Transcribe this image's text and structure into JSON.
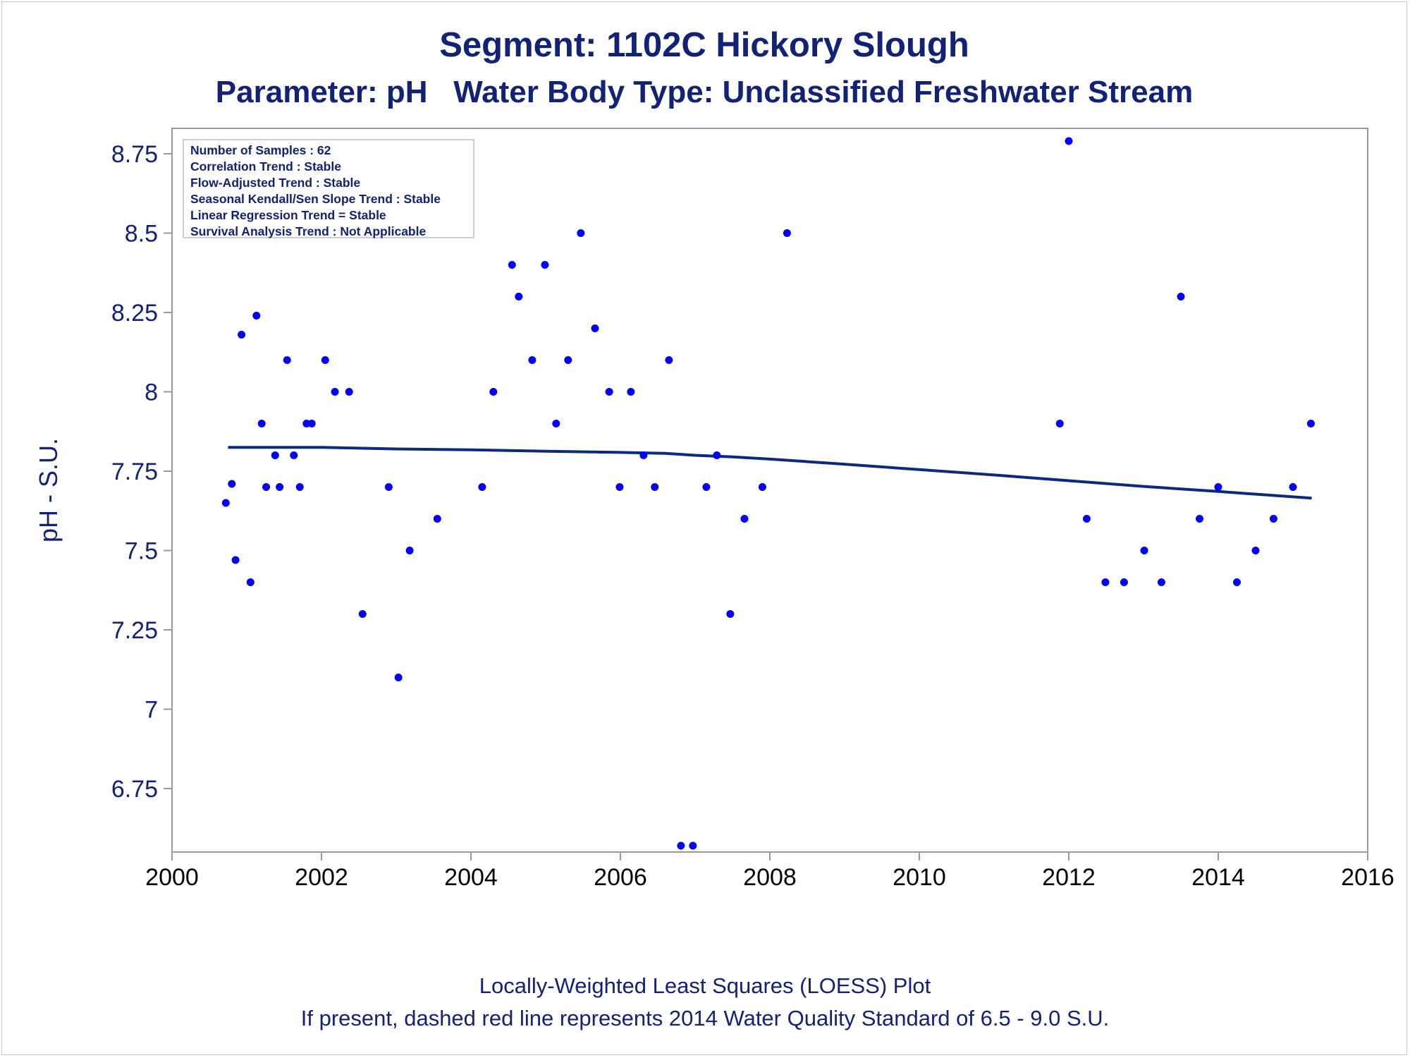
{
  "title": "Segment: 1102C  Hickory Slough",
  "subtitle": "Parameter: pH   Water Body Type: Unclassified Freshwater Stream",
  "footnote1": "Locally-Weighted Least Squares (LOESS) Plot",
  "footnote2": "If present, dashed red line represents 2014 Water Quality Standard of 6.5 - 9.0 S.U.",
  "stats": [
    "Number of Samples : 62",
    "Correlation Trend : Stable",
    "Flow-Adjusted Trend : Stable",
    "Seasonal Kendall/Sen Slope Trend : Stable",
    "Linear Regression Trend = Stable",
    "Survival Analysis Trend : Not Applicable"
  ],
  "colors": {
    "text": "#112277",
    "points": "#0000ff",
    "loess": "#0a2a80",
    "frame": "#999999"
  },
  "chart_data": {
    "type": "scatter",
    "title": "Segment: 1102C  Hickory Slough",
    "subtitle": "Parameter: pH   Water Body Type: Unclassified Freshwater Stream",
    "xlabel": "",
    "ylabel": "pH - S.U.",
    "xlim": [
      2000,
      2016
    ],
    "ylim": [
      6.55,
      8.83
    ],
    "xticks": [
      2000,
      2002,
      2004,
      2006,
      2008,
      2010,
      2012,
      2014,
      2016
    ],
    "yticks": [
      6.75,
      7,
      7.25,
      7.5,
      7.75,
      8,
      8.25,
      8.5,
      8.75
    ],
    "ytick_labels": [
      "6.75",
      "7",
      "7.25",
      "7.5",
      "7.75",
      "8",
      "8.25",
      "8.5",
      "8.75"
    ],
    "grid": false,
    "points": [
      {
        "x": 2000.72,
        "y": 7.65
      },
      {
        "x": 2000.8,
        "y": 7.71
      },
      {
        "x": 2000.85,
        "y": 7.47
      },
      {
        "x": 2000.93,
        "y": 8.18
      },
      {
        "x": 2001.05,
        "y": 7.4
      },
      {
        "x": 2001.13,
        "y": 8.24
      },
      {
        "x": 2001.2,
        "y": 7.9
      },
      {
        "x": 2001.26,
        "y": 7.7
      },
      {
        "x": 2001.38,
        "y": 7.8
      },
      {
        "x": 2001.44,
        "y": 7.7
      },
      {
        "x": 2001.54,
        "y": 8.1
      },
      {
        "x": 2001.63,
        "y": 7.8
      },
      {
        "x": 2001.71,
        "y": 7.7
      },
      {
        "x": 2001.8,
        "y": 7.9
      },
      {
        "x": 2001.87,
        "y": 7.9
      },
      {
        "x": 2002.05,
        "y": 8.1
      },
      {
        "x": 2002.18,
        "y": 8.0
      },
      {
        "x": 2002.37,
        "y": 8.0
      },
      {
        "x": 2002.55,
        "y": 7.3
      },
      {
        "x": 2002.9,
        "y": 7.7
      },
      {
        "x": 2003.03,
        "y": 7.1
      },
      {
        "x": 2003.18,
        "y": 7.5
      },
      {
        "x": 2003.55,
        "y": 7.6
      },
      {
        "x": 2004.15,
        "y": 7.7
      },
      {
        "x": 2004.3,
        "y": 8.0
      },
      {
        "x": 2004.55,
        "y": 8.4
      },
      {
        "x": 2004.64,
        "y": 8.3
      },
      {
        "x": 2004.82,
        "y": 8.1
      },
      {
        "x": 2004.99,
        "y": 8.4
      },
      {
        "x": 2005.14,
        "y": 7.9
      },
      {
        "x": 2005.3,
        "y": 8.1
      },
      {
        "x": 2005.47,
        "y": 8.5
      },
      {
        "x": 2005.66,
        "y": 8.2
      },
      {
        "x": 2005.85,
        "y": 8.0
      },
      {
        "x": 2005.99,
        "y": 7.7
      },
      {
        "x": 2006.14,
        "y": 8.0
      },
      {
        "x": 2006.31,
        "y": 7.8
      },
      {
        "x": 2006.46,
        "y": 7.7
      },
      {
        "x": 2006.65,
        "y": 8.1
      },
      {
        "x": 2006.81,
        "y": 6.57
      },
      {
        "x": 2006.97,
        "y": 6.57
      },
      {
        "x": 2007.15,
        "y": 7.7
      },
      {
        "x": 2007.29,
        "y": 7.8
      },
      {
        "x": 2007.47,
        "y": 7.3
      },
      {
        "x": 2007.66,
        "y": 7.6
      },
      {
        "x": 2007.9,
        "y": 7.7
      },
      {
        "x": 2008.23,
        "y": 8.5
      },
      {
        "x": 2011.88,
        "y": 7.9
      },
      {
        "x": 2012.0,
        "y": 8.79
      },
      {
        "x": 2012.24,
        "y": 7.6
      },
      {
        "x": 2012.49,
        "y": 7.4
      },
      {
        "x": 2012.74,
        "y": 7.4
      },
      {
        "x": 2013.01,
        "y": 7.5
      },
      {
        "x": 2013.24,
        "y": 7.4
      },
      {
        "x": 2013.5,
        "y": 8.3
      },
      {
        "x": 2013.75,
        "y": 7.6
      },
      {
        "x": 2014.0,
        "y": 7.7
      },
      {
        "x": 2014.25,
        "y": 7.4
      },
      {
        "x": 2014.5,
        "y": 7.5
      },
      {
        "x": 2014.74,
        "y": 7.6
      },
      {
        "x": 2015.0,
        "y": 7.7
      },
      {
        "x": 2015.24,
        "y": 7.9
      }
    ],
    "loess_line": [
      {
        "x": 2000.75,
        "y": 7.825
      },
      {
        "x": 2002.0,
        "y": 7.825
      },
      {
        "x": 2003.0,
        "y": 7.82
      },
      {
        "x": 2004.0,
        "y": 7.817
      },
      {
        "x": 2005.0,
        "y": 7.813
      },
      {
        "x": 2006.0,
        "y": 7.809
      },
      {
        "x": 2006.6,
        "y": 7.806
      },
      {
        "x": 2007.0,
        "y": 7.8
      },
      {
        "x": 2007.5,
        "y": 7.795
      },
      {
        "x": 2008.0,
        "y": 7.788
      },
      {
        "x": 2009.0,
        "y": 7.772
      },
      {
        "x": 2010.0,
        "y": 7.755
      },
      {
        "x": 2011.0,
        "y": 7.738
      },
      {
        "x": 2012.0,
        "y": 7.72
      },
      {
        "x": 2013.0,
        "y": 7.702
      },
      {
        "x": 2014.0,
        "y": 7.686
      },
      {
        "x": 2015.25,
        "y": 7.665
      }
    ]
  }
}
